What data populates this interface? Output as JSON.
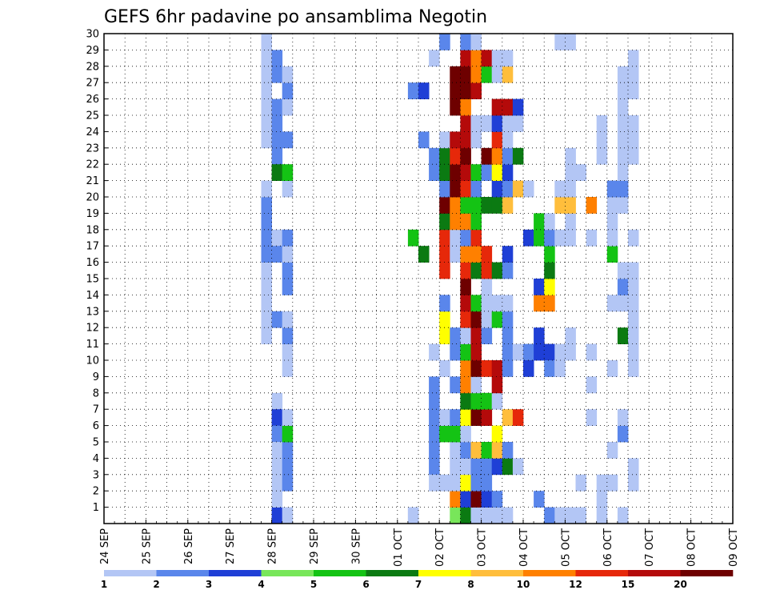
{
  "chart_data": {
    "type": "heatmap",
    "title": "GEFS 6hr padavine po ansamblima Negotin",
    "xlabel": "",
    "ylabel": "",
    "x_ticks": [
      "24 SEP",
      "25 SEP",
      "26 SEP",
      "27 SEP",
      "28 SEP",
      "29 SEP",
      "30 SEP",
      "01 OCT",
      "02 OCT",
      "03 OCT",
      "04 OCT",
      "05 OCT",
      "06 OCT",
      "07 OCT",
      "08 OCT",
      "09 OCT"
    ],
    "y_ticks": [
      1,
      2,
      3,
      4,
      5,
      6,
      7,
      8,
      9,
      10,
      11,
      12,
      13,
      14,
      15,
      16,
      17,
      18,
      19,
      20,
      21,
      22,
      23,
      24,
      25,
      26,
      27,
      28,
      29,
      30
    ],
    "x_range": [
      "24 SEP 00h",
      "09 OCT 00h"
    ],
    "y_range": [
      0,
      30
    ],
    "grid": true,
    "colorbar": {
      "labels": [
        "1",
        "2",
        "3",
        "4",
        "5",
        "6",
        "7",
        "8",
        "10",
        "12",
        "15",
        "20"
      ],
      "colors": [
        "#b3c6f5",
        "#5a86eb",
        "#1f3fd6",
        "#78e65a",
        "#14c314",
        "#0b7a12",
        "#ffff00",
        "#ffbe3c",
        "#ff8000",
        "#e6280a",
        "#b40a0a",
        "#6e0000"
      ]
    },
    "unit_note": "cells: [step (6h steps from 24 SEP 00h), member row (0 = bottom), color class]",
    "cells": [
      [
        15,
        11,
        0
      ],
      [
        15,
        12,
        0
      ],
      [
        15,
        13,
        0
      ],
      [
        15,
        14,
        0
      ],
      [
        15,
        15,
        0
      ],
      [
        15,
        16,
        1
      ],
      [
        15,
        17,
        1
      ],
      [
        15,
        18,
        1
      ],
      [
        15,
        19,
        1
      ],
      [
        15,
        20,
        0
      ],
      [
        15,
        23,
        0
      ],
      [
        15,
        24,
        0
      ],
      [
        15,
        25,
        0
      ],
      [
        15,
        26,
        0
      ],
      [
        15,
        27,
        0
      ],
      [
        15,
        28,
        0
      ],
      [
        15,
        29,
        0
      ],
      [
        16,
        0,
        2
      ],
      [
        16,
        28,
        1
      ],
      [
        16,
        27,
        1
      ],
      [
        16,
        25,
        1
      ],
      [
        16,
        24,
        1
      ],
      [
        16,
        23,
        1
      ],
      [
        16,
        22,
        1
      ],
      [
        16,
        21,
        5
      ],
      [
        16,
        17,
        0
      ],
      [
        16,
        16,
        1
      ],
      [
        16,
        12,
        1
      ],
      [
        16,
        7,
        0
      ],
      [
        16,
        6,
        2
      ],
      [
        16,
        5,
        1
      ],
      [
        16,
        4,
        0
      ],
      [
        16,
        3,
        0
      ],
      [
        16,
        2,
        0
      ],
      [
        16,
        1,
        0
      ],
      [
        17,
        0,
        0
      ],
      [
        17,
        2,
        1
      ],
      [
        17,
        3,
        1
      ],
      [
        17,
        4,
        1
      ],
      [
        17,
        5,
        4
      ],
      [
        17,
        6,
        0
      ],
      [
        17,
        9,
        0
      ],
      [
        17,
        10,
        0
      ],
      [
        17,
        11,
        1
      ],
      [
        17,
        12,
        0
      ],
      [
        17,
        14,
        1
      ],
      [
        17,
        15,
        1
      ],
      [
        17,
        16,
        0
      ],
      [
        17,
        17,
        1
      ],
      [
        17,
        20,
        0
      ],
      [
        17,
        21,
        4
      ],
      [
        17,
        23,
        1
      ],
      [
        17,
        25,
        0
      ],
      [
        17,
        26,
        1
      ],
      [
        17,
        27,
        0
      ],
      [
        29,
        0,
        0
      ],
      [
        29,
        0,
        0
      ],
      [
        29,
        26,
        1
      ],
      [
        29,
        17,
        4
      ],
      [
        30,
        26,
        2
      ],
      [
        30,
        16,
        5
      ],
      [
        30,
        23,
        1
      ],
      [
        31,
        28,
        0
      ],
      [
        31,
        22,
        1
      ],
      [
        31,
        21,
        1
      ],
      [
        31,
        10,
        0
      ],
      [
        31,
        5,
        1
      ],
      [
        31,
        4,
        1
      ],
      [
        31,
        3,
        1
      ],
      [
        31,
        2,
        0
      ],
      [
        31,
        8,
        1
      ],
      [
        31,
        7,
        1
      ],
      [
        31,
        6,
        1
      ],
      [
        32,
        2,
        0
      ],
      [
        32,
        5,
        4
      ],
      [
        32,
        6,
        0
      ],
      [
        32,
        9,
        0
      ],
      [
        32,
        11,
        6
      ],
      [
        32,
        12,
        6
      ],
      [
        32,
        13,
        1
      ],
      [
        32,
        15,
        9
      ],
      [
        32,
        16,
        9
      ],
      [
        32,
        17,
        9
      ],
      [
        32,
        18,
        5
      ],
      [
        32,
        19,
        11
      ],
      [
        32,
        20,
        1
      ],
      [
        32,
        21,
        5
      ],
      [
        32,
        22,
        5
      ],
      [
        32,
        23,
        0
      ],
      [
        32,
        29,
        1
      ],
      [
        33,
        0,
        3
      ],
      [
        33,
        1,
        8
      ],
      [
        33,
        2,
        0
      ],
      [
        33,
        3,
        0
      ],
      [
        33,
        4,
        0
      ],
      [
        33,
        5,
        4
      ],
      [
        33,
        6,
        1
      ],
      [
        33,
        8,
        1
      ],
      [
        33,
        10,
        1
      ],
      [
        33,
        11,
        1
      ],
      [
        33,
        16,
        0
      ],
      [
        33,
        17,
        0
      ],
      [
        33,
        18,
        8
      ],
      [
        33,
        19,
        8
      ],
      [
        33,
        20,
        11
      ],
      [
        33,
        21,
        11
      ],
      [
        33,
        22,
        9
      ],
      [
        33,
        23,
        10
      ],
      [
        33,
        25,
        11
      ],
      [
        33,
        26,
        11
      ],
      [
        33,
        27,
        11
      ],
      [
        34,
        0,
        5
      ],
      [
        34,
        1,
        2
      ],
      [
        34,
        2,
        6
      ],
      [
        34,
        3,
        0
      ],
      [
        34,
        4,
        1
      ],
      [
        34,
        5,
        0
      ],
      [
        34,
        6,
        6
      ],
      [
        34,
        7,
        5
      ],
      [
        34,
        8,
        8
      ],
      [
        34,
        9,
        8
      ],
      [
        34,
        10,
        4
      ],
      [
        34,
        11,
        0
      ],
      [
        34,
        12,
        9
      ],
      [
        34,
        13,
        10
      ],
      [
        34,
        14,
        11
      ],
      [
        34,
        15,
        9
      ],
      [
        34,
        16,
        8
      ],
      [
        34,
        17,
        1
      ],
      [
        34,
        18,
        8
      ],
      [
        34,
        19,
        4
      ],
      [
        34,
        20,
        9
      ],
      [
        34,
        21,
        10
      ],
      [
        34,
        22,
        11
      ],
      [
        34,
        23,
        10
      ],
      [
        34,
        24,
        10
      ],
      [
        34,
        25,
        8
      ],
      [
        34,
        26,
        11
      ],
      [
        34,
        27,
        11
      ],
      [
        34,
        28,
        10
      ],
      [
        34,
        29,
        1
      ],
      [
        35,
        0,
        0
      ],
      [
        35,
        1,
        11
      ],
      [
        35,
        2,
        1
      ],
      [
        35,
        3,
        1
      ],
      [
        35,
        4,
        7
      ],
      [
        35,
        6,
        11
      ],
      [
        35,
        7,
        4
      ],
      [
        35,
        8,
        0
      ],
      [
        35,
        9,
        11
      ],
      [
        35,
        10,
        10
      ],
      [
        35,
        11,
        10
      ],
      [
        35,
        12,
        11
      ],
      [
        35,
        13,
        4
      ],
      [
        35,
        15,
        5
      ],
      [
        35,
        16,
        8
      ],
      [
        35,
        17,
        9
      ],
      [
        35,
        18,
        4
      ],
      [
        35,
        19,
        4
      ],
      [
        35,
        20,
        1
      ],
      [
        35,
        21,
        4
      ],
      [
        35,
        23,
        0
      ],
      [
        35,
        24,
        0
      ],
      [
        35,
        26,
        10
      ],
      [
        35,
        27,
        8
      ],
      [
        35,
        28,
        8
      ],
      [
        35,
        29,
        0
      ],
      [
        36,
        0,
        0
      ],
      [
        36,
        1,
        2
      ],
      [
        36,
        2,
        1
      ],
      [
        36,
        3,
        1
      ],
      [
        36,
        4,
        4
      ],
      [
        36,
        6,
        10
      ],
      [
        36,
        7,
        4
      ],
      [
        36,
        9,
        9
      ],
      [
        36,
        11,
        1
      ],
      [
        36,
        12,
        0
      ],
      [
        36,
        13,
        0
      ],
      [
        36,
        14,
        0
      ],
      [
        36,
        15,
        9
      ],
      [
        36,
        16,
        9
      ],
      [
        36,
        19,
        5
      ],
      [
        36,
        21,
        1
      ],
      [
        36,
        22,
        11
      ],
      [
        36,
        24,
        0
      ],
      [
        36,
        27,
        4
      ],
      [
        36,
        28,
        10
      ],
      [
        37,
        0,
        0
      ],
      [
        37,
        1,
        1
      ],
      [
        37,
        3,
        2
      ],
      [
        37,
        4,
        7
      ],
      [
        37,
        5,
        6
      ],
      [
        37,
        7,
        0
      ],
      [
        37,
        8,
        10
      ],
      [
        37,
        9,
        10
      ],
      [
        37,
        12,
        4
      ],
      [
        37,
        13,
        0
      ],
      [
        37,
        15,
        5
      ],
      [
        37,
        19,
        5
      ],
      [
        37,
        20,
        2
      ],
      [
        37,
        21,
        6
      ],
      [
        37,
        22,
        8
      ],
      [
        37,
        23,
        9
      ],
      [
        37,
        24,
        2
      ],
      [
        37,
        25,
        10
      ],
      [
        37,
        27,
        0
      ],
      [
        37,
        28,
        0
      ],
      [
        38,
        0,
        0
      ],
      [
        38,
        3,
        5
      ],
      [
        38,
        4,
        1
      ],
      [
        38,
        6,
        7
      ],
      [
        38,
        9,
        1
      ],
      [
        38,
        10,
        1
      ],
      [
        38,
        11,
        1
      ],
      [
        38,
        12,
        1
      ],
      [
        38,
        13,
        0
      ],
      [
        38,
        15,
        1
      ],
      [
        38,
        16,
        2
      ],
      [
        38,
        19,
        7
      ],
      [
        38,
        20,
        1
      ],
      [
        38,
        21,
        2
      ],
      [
        38,
        22,
        1
      ],
      [
        38,
        23,
        0
      ],
      [
        38,
        24,
        0
      ],
      [
        38,
        25,
        10
      ],
      [
        38,
        27,
        7
      ],
      [
        38,
        28,
        0
      ],
      [
        39,
        3,
        0
      ],
      [
        39,
        6,
        9
      ],
      [
        39,
        10,
        0
      ],
      [
        39,
        20,
        7
      ],
      [
        39,
        22,
        5
      ],
      [
        39,
        24,
        0
      ],
      [
        39,
        25,
        2
      ],
      [
        40,
        20,
        0
      ],
      [
        40,
        17,
        2
      ],
      [
        40,
        10,
        1
      ],
      [
        40,
        9,
        2
      ],
      [
        41,
        1,
        1
      ],
      [
        41,
        13,
        8
      ],
      [
        41,
        14,
        2
      ],
      [
        41,
        18,
        4
      ],
      [
        41,
        17,
        4
      ],
      [
        41,
        11,
        2
      ],
      [
        41,
        10,
        2
      ],
      [
        42,
        0,
        1
      ],
      [
        42,
        10,
        2
      ],
      [
        42,
        13,
        8
      ],
      [
        42,
        14,
        6
      ],
      [
        42,
        15,
        5
      ],
      [
        42,
        16,
        4
      ],
      [
        42,
        17,
        1
      ],
      [
        42,
        18,
        0
      ],
      [
        42,
        9,
        1
      ],
      [
        43,
        0,
        0
      ],
      [
        43,
        9,
        0
      ],
      [
        43,
        10,
        0
      ],
      [
        43,
        17,
        0
      ],
      [
        43,
        19,
        7
      ],
      [
        43,
        20,
        0
      ],
      [
        43,
        29,
        0
      ],
      [
        43,
        9,
        0
      ],
      [
        44,
        0,
        0
      ],
      [
        44,
        10,
        0
      ],
      [
        44,
        11,
        0
      ],
      [
        44,
        18,
        0
      ],
      [
        44,
        19,
        7
      ],
      [
        44,
        20,
        0
      ],
      [
        44,
        21,
        0
      ],
      [
        44,
        22,
        0
      ],
      [
        44,
        17,
        0
      ],
      [
        44,
        29,
        0
      ],
      [
        45,
        0,
        0
      ],
      [
        45,
        21,
        0
      ],
      [
        45,
        2,
        0
      ],
      [
        46,
        6,
        0
      ],
      [
        46,
        8,
        0
      ],
      [
        46,
        10,
        0
      ],
      [
        46,
        17,
        0
      ],
      [
        46,
        19,
        8
      ],
      [
        47,
        0,
        0
      ],
      [
        47,
        1,
        0
      ],
      [
        47,
        2,
        0
      ],
      [
        47,
        22,
        0
      ],
      [
        47,
        23,
        0
      ],
      [
        47,
        24,
        0
      ],
      [
        48,
        2,
        0
      ],
      [
        48,
        4,
        0
      ],
      [
        48,
        9,
        0
      ],
      [
        48,
        13,
        0
      ],
      [
        48,
        16,
        4
      ],
      [
        48,
        17,
        0
      ],
      [
        48,
        18,
        0
      ],
      [
        48,
        19,
        0
      ],
      [
        48,
        20,
        1
      ],
      [
        49,
        0,
        0
      ],
      [
        49,
        5,
        1
      ],
      [
        49,
        6,
        0
      ],
      [
        49,
        11,
        5
      ],
      [
        49,
        13,
        0
      ],
      [
        49,
        14,
        1
      ],
      [
        49,
        15,
        0
      ],
      [
        49,
        19,
        0
      ],
      [
        49,
        20,
        1
      ],
      [
        49,
        21,
        0
      ],
      [
        49,
        22,
        0
      ],
      [
        49,
        23,
        0
      ],
      [
        49,
        24,
        0
      ],
      [
        49,
        25,
        0
      ],
      [
        49,
        26,
        0
      ],
      [
        49,
        27,
        0
      ],
      [
        50,
        2,
        0
      ],
      [
        50,
        3,
        0
      ],
      [
        50,
        9,
        0
      ],
      [
        50,
        10,
        0
      ],
      [
        50,
        11,
        0
      ],
      [
        50,
        12,
        0
      ],
      [
        50,
        13,
        0
      ],
      [
        50,
        14,
        0
      ],
      [
        50,
        15,
        0
      ],
      [
        50,
        17,
        0
      ],
      [
        50,
        22,
        0
      ],
      [
        50,
        23,
        0
      ],
      [
        50,
        24,
        0
      ],
      [
        50,
        26,
        0
      ],
      [
        50,
        27,
        0
      ],
      [
        50,
        28,
        0
      ]
    ]
  }
}
